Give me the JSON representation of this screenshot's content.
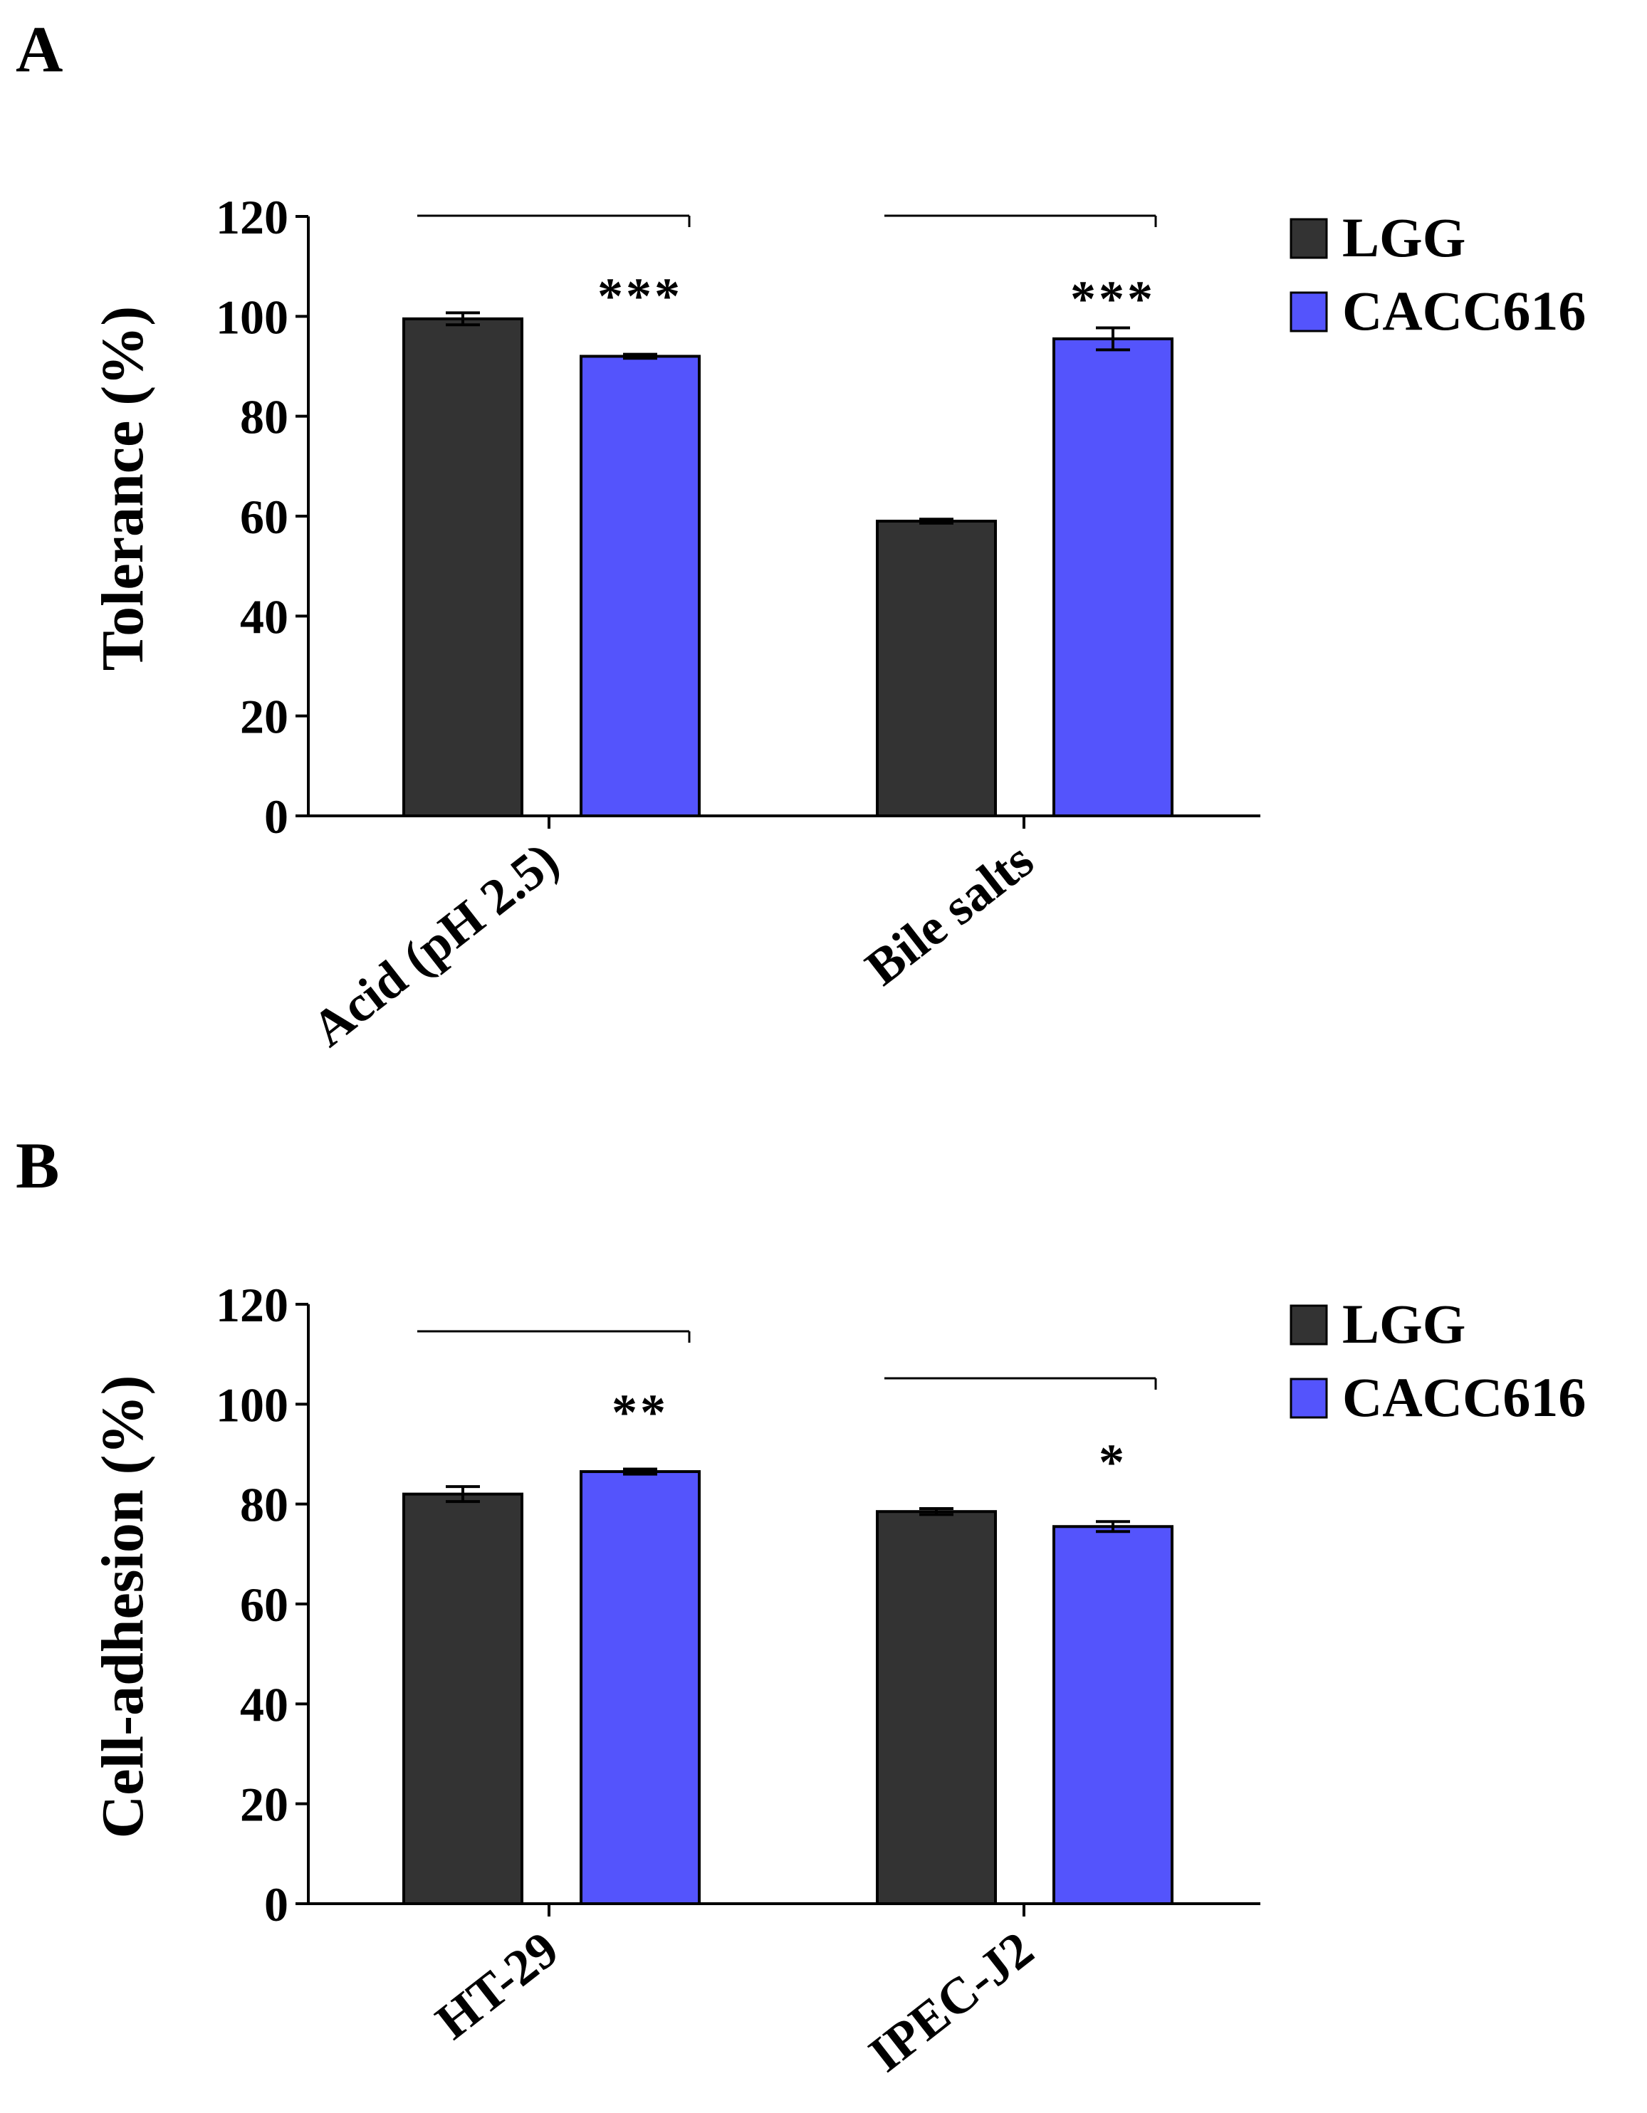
{
  "chart_data": [
    {
      "panel": "A",
      "type": "bar",
      "ylabel": "Tolerance (%)",
      "ylim": [
        0,
        120
      ],
      "yticks": [
        0,
        20,
        40,
        60,
        80,
        100,
        120
      ],
      "categories": [
        "Acid (pH 2.5)",
        "Bile salts"
      ],
      "series": [
        {
          "name": "LGG",
          "color": "#333333",
          "values": [
            99.5,
            59
          ],
          "errors": [
            1.2,
            0.4
          ]
        },
        {
          "name": "CACC616",
          "color": "#5454fc",
          "values": [
            92,
            95.5
          ],
          "errors": [
            0.4,
            2.2
          ]
        }
      ],
      "significance": [
        "***",
        "***"
      ]
    },
    {
      "panel": "B",
      "type": "bar",
      "ylabel": "Cell-adhesion (%)",
      "ylim": [
        0,
        120
      ],
      "yticks": [
        0,
        20,
        40,
        60,
        80,
        100,
        120
      ],
      "categories": [
        "HT-29",
        "IPEC-J2"
      ],
      "series": [
        {
          "name": "LGG",
          "color": "#333333",
          "values": [
            82,
            78.5
          ],
          "errors": [
            1.5,
            0.6
          ]
        },
        {
          "name": "CACC616",
          "color": "#5454fc",
          "values": [
            86.5,
            75.5
          ],
          "errors": [
            0.5,
            1.0
          ]
        }
      ],
      "significance": [
        "**",
        "*"
      ]
    }
  ]
}
